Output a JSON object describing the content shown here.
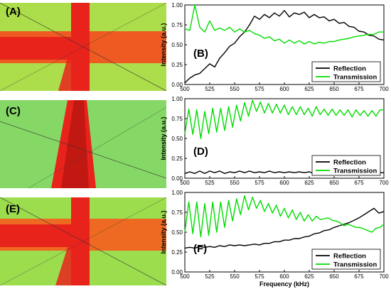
{
  "panels": {
    "A": "(A)",
    "C": "(C)",
    "E": "(E)"
  },
  "colors": {
    "reflection": "#000000",
    "transmission": "#00dd00",
    "heat_low": "#2ec4d8",
    "heat_mid": "#f2e52a",
    "heat_high": "#e8231c"
  },
  "chart_data": [
    {
      "type": "line",
      "panel_label": "(B)",
      "xlabel": "",
      "ylabel": "Intensity (a.u.)",
      "xlim": [
        500,
        700
      ],
      "ylim": [
        0,
        1
      ],
      "xticks": [
        "500",
        "525",
        "550",
        "575",
        "600",
        "625",
        "650",
        "675",
        "700"
      ],
      "yticks": [
        "0.00",
        "0.25",
        "0.50",
        "0.75",
        "1.00"
      ],
      "legend_position": "bottom-right",
      "series": [
        {
          "name": "Reflection",
          "color": "#000000",
          "x": [
            500,
            505,
            510,
            515,
            520,
            525,
            530,
            535,
            540,
            545,
            550,
            555,
            560,
            565,
            570,
            575,
            580,
            585,
            590,
            595,
            600,
            605,
            610,
            615,
            620,
            625,
            630,
            635,
            640,
            645,
            650,
            655,
            660,
            665,
            670,
            675,
            680,
            685,
            690,
            695,
            700
          ],
          "y": [
            0.02,
            0.08,
            0.12,
            0.14,
            0.2,
            0.26,
            0.22,
            0.33,
            0.4,
            0.48,
            0.52,
            0.6,
            0.66,
            0.75,
            0.86,
            0.82,
            0.88,
            0.84,
            0.9,
            0.86,
            0.93,
            0.85,
            0.9,
            0.88,
            0.91,
            0.84,
            0.88,
            0.84,
            0.85,
            0.8,
            0.82,
            0.77,
            0.78,
            0.73,
            0.72,
            0.67,
            0.66,
            0.62,
            0.61,
            0.57,
            0.56
          ]
        },
        {
          "name": "Transmission",
          "color": "#00dd00",
          "x": [
            500,
            505,
            510,
            515,
            520,
            525,
            530,
            535,
            540,
            545,
            550,
            555,
            560,
            565,
            570,
            575,
            580,
            585,
            590,
            595,
            600,
            605,
            610,
            615,
            620,
            625,
            630,
            635,
            640,
            645,
            650,
            655,
            660,
            665,
            670,
            675,
            680,
            685,
            690,
            695,
            700
          ],
          "y": [
            0.7,
            0.68,
            1.0,
            0.72,
            0.66,
            0.8,
            0.68,
            0.71,
            0.68,
            0.72,
            0.66,
            0.7,
            0.66,
            0.68,
            0.64,
            0.62,
            0.58,
            0.6,
            0.55,
            0.57,
            0.52,
            0.56,
            0.52,
            0.55,
            0.51,
            0.54,
            0.51,
            0.53,
            0.52,
            0.54,
            0.54,
            0.56,
            0.57,
            0.58,
            0.6,
            0.61,
            0.62,
            0.63,
            0.63,
            0.66,
            0.66
          ]
        }
      ]
    },
    {
      "type": "line",
      "panel_label": "(D)",
      "xlabel": "",
      "ylabel": "Intensity (a.u.)",
      "xlim": [
        500,
        700
      ],
      "ylim": [
        0,
        1
      ],
      "xticks": [
        "500",
        "525",
        "550",
        "575",
        "600",
        "625",
        "650",
        "675",
        "700"
      ],
      "yticks": [
        "0.00",
        "0.25",
        "0.50",
        "0.75",
        "1.00"
      ],
      "legend_position": "bottom-right",
      "series": [
        {
          "name": "Reflection",
          "color": "#000000",
          "x": [
            500,
            505,
            510,
            515,
            520,
            525,
            530,
            535,
            540,
            545,
            550,
            555,
            560,
            565,
            570,
            575,
            580,
            585,
            590,
            595,
            600,
            605,
            610,
            615,
            620,
            625,
            630,
            635,
            640,
            645,
            650,
            655,
            660,
            665,
            670,
            675,
            680,
            685,
            690,
            695,
            700
          ],
          "y": [
            0.06,
            0.08,
            0.06,
            0.09,
            0.06,
            0.09,
            0.07,
            0.09,
            0.06,
            0.08,
            0.07,
            0.09,
            0.07,
            0.09,
            0.07,
            0.08,
            0.07,
            0.09,
            0.07,
            0.08,
            0.07,
            0.08,
            0.07,
            0.08,
            0.07,
            0.08,
            0.06,
            0.08,
            0.07,
            0.08,
            0.07,
            0.08,
            0.06,
            0.08,
            0.07,
            0.08,
            0.07,
            0.08,
            0.07,
            0.07,
            0.07
          ]
        },
        {
          "name": "Transmission",
          "color": "#00dd00",
          "x": [
            500,
            504,
            508,
            512,
            516,
            520,
            524,
            528,
            532,
            536,
            540,
            544,
            548,
            552,
            556,
            560,
            564,
            568,
            572,
            576,
            580,
            584,
            588,
            592,
            596,
            600,
            604,
            608,
            612,
            616,
            620,
            624,
            628,
            632,
            636,
            640,
            644,
            648,
            652,
            656,
            660,
            664,
            668,
            672,
            676,
            680,
            684,
            688,
            692,
            696,
            700
          ],
          "y": [
            0.56,
            0.87,
            0.55,
            0.86,
            0.5,
            0.84,
            0.56,
            0.88,
            0.58,
            0.88,
            0.6,
            0.9,
            0.64,
            0.92,
            0.72,
            0.95,
            0.78,
            0.98,
            0.84,
            0.96,
            0.82,
            0.94,
            0.82,
            0.93,
            0.82,
            0.92,
            0.8,
            0.9,
            0.8,
            0.9,
            0.8,
            0.88,
            0.78,
            0.9,
            0.8,
            0.87,
            0.79,
            0.87,
            0.79,
            0.86,
            0.79,
            0.86,
            0.77,
            0.86,
            0.79,
            0.85,
            0.78,
            0.85,
            0.78,
            0.86,
            0.86
          ]
        }
      ]
    },
    {
      "type": "line",
      "panel_label": "(F)",
      "xlabel": "Frequency (kHz)",
      "ylabel": "Intensity (a.u.)",
      "xlim": [
        500,
        700
      ],
      "ylim": [
        0,
        1
      ],
      "xticks": [
        "500",
        "525",
        "550",
        "575",
        "600",
        "625",
        "650",
        "675",
        "700"
      ],
      "yticks": [
        "0.00",
        "0.25",
        "0.50",
        "0.75",
        "1.00"
      ],
      "legend_position": "bottom-right",
      "series": [
        {
          "name": "Reflection",
          "color": "#000000",
          "x": [
            500,
            505,
            510,
            515,
            520,
            525,
            530,
            535,
            540,
            545,
            550,
            555,
            560,
            565,
            570,
            575,
            580,
            585,
            590,
            595,
            600,
            605,
            610,
            615,
            620,
            625,
            630,
            635,
            640,
            645,
            650,
            655,
            660,
            665,
            670,
            675,
            680,
            685,
            690,
            695,
            700
          ],
          "y": [
            0.3,
            0.31,
            0.3,
            0.32,
            0.31,
            0.32,
            0.31,
            0.33,
            0.32,
            0.34,
            0.33,
            0.34,
            0.33,
            0.34,
            0.35,
            0.34,
            0.36,
            0.36,
            0.38,
            0.38,
            0.4,
            0.4,
            0.42,
            0.42,
            0.44,
            0.45,
            0.48,
            0.49,
            0.52,
            0.53,
            0.56,
            0.58,
            0.6,
            0.62,
            0.65,
            0.68,
            0.72,
            0.76,
            0.8,
            0.74,
            0.76
          ]
        },
        {
          "name": "Transmission",
          "color": "#00dd00",
          "x": [
            500,
            504,
            508,
            512,
            516,
            520,
            524,
            528,
            532,
            536,
            540,
            544,
            548,
            552,
            556,
            560,
            564,
            568,
            572,
            576,
            580,
            584,
            588,
            592,
            596,
            600,
            604,
            608,
            612,
            616,
            620,
            624,
            628,
            632,
            636,
            640,
            644,
            648,
            652,
            656,
            660,
            664,
            668,
            672,
            676,
            680,
            684,
            688,
            692,
            696,
            700
          ],
          "y": [
            0.5,
            0.88,
            0.48,
            0.88,
            0.44,
            0.86,
            0.46,
            0.88,
            0.5,
            0.88,
            0.56,
            0.9,
            0.64,
            0.92,
            0.72,
            0.96,
            0.78,
            0.94,
            0.8,
            0.9,
            0.76,
            0.86,
            0.74,
            0.84,
            0.7,
            0.8,
            0.68,
            0.78,
            0.66,
            0.75,
            0.64,
            0.72,
            0.64,
            0.7,
            0.66,
            0.67,
            0.68,
            0.65,
            0.64,
            0.62,
            0.58,
            0.6,
            0.58,
            0.56,
            0.56,
            0.54,
            0.52,
            0.5,
            0.55,
            0.56,
            0.6
          ]
        }
      ]
    }
  ]
}
